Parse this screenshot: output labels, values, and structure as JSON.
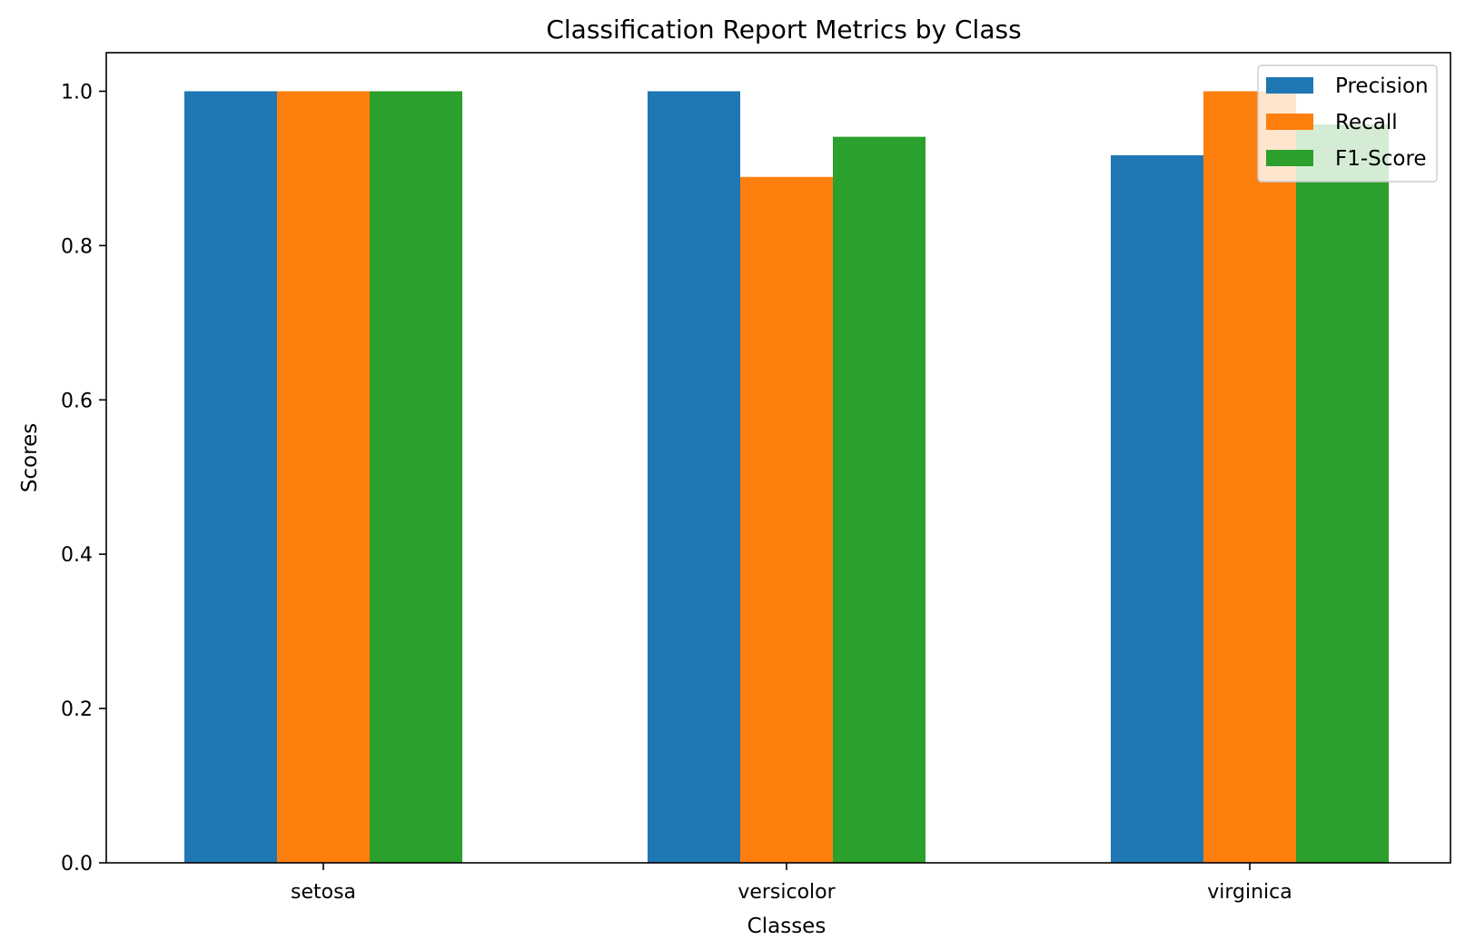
{
  "chart_data": {
    "type": "bar",
    "title": "Classification Report Metrics by Class",
    "xlabel": "Classes",
    "ylabel": "Scores",
    "categories": [
      "setosa",
      "versicolor",
      "virginica"
    ],
    "series": [
      {
        "name": "Precision",
        "color": "#1f77b4",
        "values": [
          1.0,
          1.0,
          0.917
        ]
      },
      {
        "name": "Recall",
        "color": "#ff7f0e",
        "values": [
          1.0,
          0.889,
          1.0
        ]
      },
      {
        "name": "F1-Score",
        "color": "#2ca02c",
        "values": [
          1.0,
          0.941,
          0.957
        ]
      }
    ],
    "ylim": [
      0,
      1.05
    ],
    "yticks": [
      "0.0",
      "0.2",
      "0.4",
      "0.6",
      "0.8",
      "1.0"
    ],
    "grid": false,
    "legend_position": "top-right"
  }
}
